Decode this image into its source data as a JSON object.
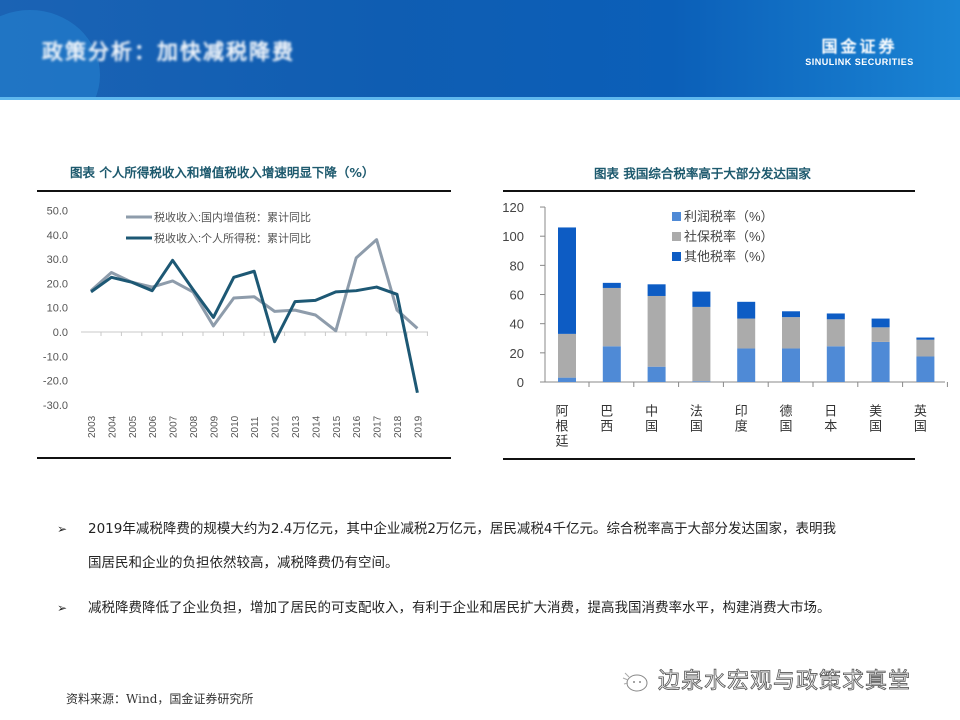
{
  "header": {
    "title": "政策分析：加快减税降费",
    "logo_mark": "国金证券",
    "logo_text": "SINULINK SECURITIES"
  },
  "left_chart": {
    "title": "图表  个人所得税收入和增值税收入增速明显下降（%）"
  },
  "right_chart": {
    "title": "图表 我国综合税率高于大部分发达国家"
  },
  "bullets": [
    {
      "marker": "➢",
      "text_line1": "2019年减税降费的规模大约为2.4万亿元，其中企业减税2万亿元，居民减税4千亿元。综合税率高于大部分发达国家，表明我",
      "text_line2": "国居民和企业的负担依然较高，减税降费仍有空间。"
    },
    {
      "marker": "➢",
      "text_line1": "减税降费降低了企业负担，增加了居民的可支配收入，有利于企业和居民扩大消费，提高我国消费率水平，构建消费大市场。"
    }
  ],
  "footer": {
    "source": "资料来源：Wind，国金证券研究所",
    "watermark": "边泉水宏观与政策求真堂",
    "watermark_icon": "wechat-icon"
  },
  "colors": {
    "banner": "#0f5db2",
    "vat_line": "#8e9cab",
    "pit_line": "#1d5874",
    "profit_bar": "#4f8ad6",
    "social_bar": "#ababab",
    "other_bar": "#0d5cc4",
    "title_text": "#1e5a6e"
  },
  "chart_data": [
    {
      "type": "line",
      "title": "个人所得税收入和增值税收入增速明显下降（%）",
      "xlabel": "",
      "ylabel": "",
      "ylim": [
        -30,
        50
      ],
      "yticks": [
        "50.0",
        "40.0",
        "30.0",
        "20.0",
        "10.0",
        "0.0",
        "-10.0",
        "-20.0",
        "-30.0"
      ],
      "x": [
        "2003",
        "2004",
        "2005",
        "2006",
        "2007",
        "2008",
        "2009",
        "2010",
        "2011",
        "2012",
        "2013",
        "2014",
        "2015",
        "2016",
        "2017",
        "2018",
        "2019"
      ],
      "series": [
        {
          "name": "税收收入:国内增值税：累计同比",
          "color": "#8e9cab",
          "values": [
            17.0,
            24.5,
            20.5,
            18.5,
            21.0,
            16.5,
            2.5,
            14.0,
            14.5,
            8.5,
            9.0,
            7.0,
            0.5,
            30.5,
            38.0,
            9.0,
            1.5
          ]
        },
        {
          "name": "税收收入:个人所得税：累计同比",
          "color": "#1d5874",
          "values": [
            16.5,
            22.5,
            20.5,
            17.0,
            29.5,
            17.5,
            6.0,
            22.5,
            25.0,
            -4.0,
            12.5,
            13.0,
            16.5,
            17.0,
            18.5,
            15.5,
            -25.0
          ]
        }
      ],
      "legend_position": "top-left inside"
    },
    {
      "type": "bar",
      "stacked": true,
      "title": "我国综合税率高于大部分发达国家",
      "ylim": [
        0,
        120
      ],
      "yticks": [
        "120",
        "100",
        "80",
        "60",
        "40",
        "20",
        "0"
      ],
      "categories": [
        "阿根廷",
        "巴西",
        "中国",
        "法国",
        "印度",
        "德国",
        "日本",
        "美国",
        "英国"
      ],
      "series": [
        {
          "name": "利润税率（%）",
          "color": "#4f8ad6",
          "values": [
            3.0,
            24.5,
            10.5,
            0.5,
            23.0,
            23.0,
            24.5,
            27.5,
            17.5
          ]
        },
        {
          "name": "社保税率（%）",
          "color": "#ababab",
          "values": [
            30.0,
            40.0,
            48.5,
            51.0,
            20.5,
            21.5,
            18.5,
            10.0,
            11.5
          ]
        },
        {
          "name": "其他税率（%）",
          "color": "#0d5cc4",
          "values": [
            73.0,
            3.5,
            8.0,
            10.5,
            11.5,
            4.0,
            4.0,
            6.0,
            1.5
          ]
        }
      ],
      "legend_position": "top-center inside"
    }
  ]
}
